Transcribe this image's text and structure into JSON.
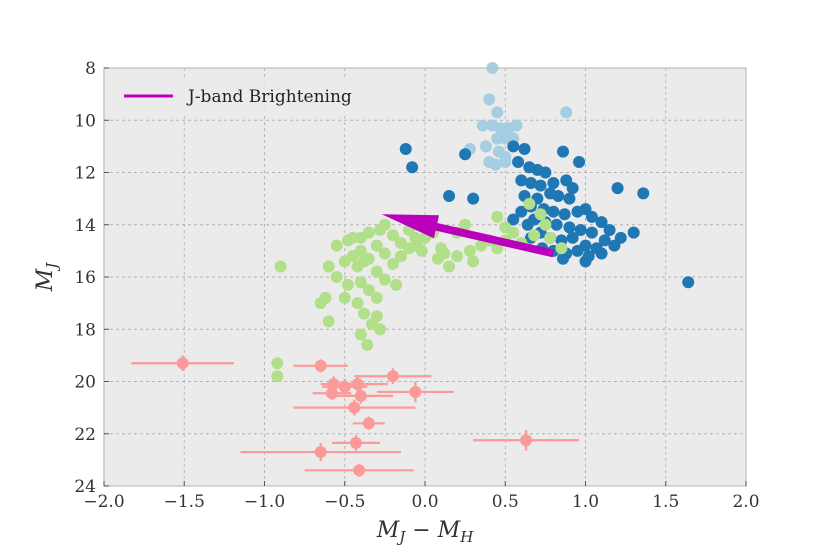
{
  "chart_data": {
    "type": "scatter",
    "title": "",
    "xlabel": "M_J − M_H",
    "ylabel": "M_J",
    "xlabel_main": "M",
    "xlabel_sub1": "J",
    "xlabel_minus": " − M",
    "xlabel_sub2": "H",
    "ylabel_main": "M",
    "ylabel_sub": "J",
    "xlim": [
      -2.0,
      2.0
    ],
    "ylim": [
      24,
      8
    ],
    "y_inverted": true,
    "grid": true,
    "background": "#ebebeb",
    "x_ticks": [
      -2.0,
      -1.5,
      -1.0,
      -0.5,
      0.0,
      0.5,
      1.0,
      1.5,
      2.0
    ],
    "x_tick_labels": [
      "−2.0",
      "−1.5",
      "−1.0",
      "−0.5",
      "0.0",
      "0.5",
      "1.0",
      "1.5",
      "2.0"
    ],
    "y_ticks": [
      8,
      10,
      12,
      14,
      16,
      18,
      20,
      22,
      24
    ],
    "y_tick_labels": [
      "8",
      "10",
      "12",
      "14",
      "16",
      "18",
      "20",
      "22",
      "24"
    ],
    "legend": {
      "position": "top-left",
      "entries": [
        {
          "label": "J-band Brightening",
          "color": "#bb00bb"
        }
      ]
    },
    "series": [
      {
        "color": "#a6cee3",
        "points": [
          [
            0.42,
            8.0
          ],
          [
            0.4,
            9.2
          ],
          [
            0.45,
            9.7
          ],
          [
            0.88,
            9.7
          ],
          [
            0.36,
            10.2
          ],
          [
            0.42,
            10.2
          ],
          [
            0.47,
            10.3
          ],
          [
            0.52,
            10.3
          ],
          [
            0.57,
            10.2
          ],
          [
            0.45,
            10.7
          ],
          [
            0.5,
            10.7
          ],
          [
            0.55,
            10.7
          ],
          [
            0.38,
            11.0
          ],
          [
            0.46,
            11.2
          ],
          [
            0.5,
            11.4
          ],
          [
            0.28,
            11.1
          ],
          [
            0.4,
            11.6
          ],
          [
            0.44,
            11.7
          ],
          [
            0.5,
            11.6
          ]
        ]
      },
      {
        "color": "#1f78b4",
        "points": [
          [
            -0.12,
            11.1
          ],
          [
            -0.08,
            11.8
          ],
          [
            0.25,
            11.3
          ],
          [
            0.55,
            11.0
          ],
          [
            0.62,
            11.1
          ],
          [
            0.86,
            11.2
          ],
          [
            0.96,
            11.6
          ],
          [
            0.58,
            11.6
          ],
          [
            0.65,
            11.8
          ],
          [
            0.7,
            11.9
          ],
          [
            0.75,
            12.0
          ],
          [
            0.6,
            12.3
          ],
          [
            0.66,
            12.4
          ],
          [
            0.72,
            12.5
          ],
          [
            0.8,
            12.4
          ],
          [
            0.88,
            12.3
          ],
          [
            0.92,
            12.6
          ],
          [
            0.78,
            12.8
          ],
          [
            0.83,
            12.9
          ],
          [
            0.9,
            13.0
          ],
          [
            0.7,
            13.0
          ],
          [
            0.62,
            12.9
          ],
          [
            0.66,
            13.3
          ],
          [
            0.74,
            13.4
          ],
          [
            0.8,
            13.5
          ],
          [
            0.87,
            13.6
          ],
          [
            0.95,
            13.5
          ],
          [
            1.0,
            13.4
          ],
          [
            0.6,
            13.5
          ],
          [
            0.68,
            13.8
          ],
          [
            0.75,
            13.9
          ],
          [
            0.82,
            14.0
          ],
          [
            0.9,
            14.1
          ],
          [
            0.97,
            14.2
          ],
          [
            1.04,
            14.3
          ],
          [
            0.72,
            14.3
          ],
          [
            0.78,
            14.5
          ],
          [
            0.85,
            14.6
          ],
          [
            0.92,
            14.5
          ],
          [
            1.0,
            14.8
          ],
          [
            1.07,
            14.9
          ],
          [
            1.12,
            14.6
          ],
          [
            0.66,
            14.5
          ],
          [
            0.73,
            14.9
          ],
          [
            0.8,
            15.0
          ],
          [
            0.88,
            15.1
          ],
          [
            0.95,
            15.0
          ],
          [
            1.02,
            15.2
          ],
          [
            1.1,
            15.1
          ],
          [
            0.86,
            15.3
          ],
          [
            1.0,
            15.4
          ],
          [
            1.2,
            12.6
          ],
          [
            1.22,
            14.5
          ],
          [
            1.3,
            14.3
          ],
          [
            1.36,
            12.8
          ],
          [
            1.18,
            14.8
          ],
          [
            0.15,
            12.9
          ],
          [
            0.3,
            13.0
          ],
          [
            0.55,
            13.8
          ],
          [
            0.64,
            14.0
          ],
          [
            1.04,
            13.7
          ],
          [
            1.1,
            13.9
          ],
          [
            1.15,
            14.2
          ],
          [
            1.64,
            16.2
          ]
        ]
      },
      {
        "color": "#b2df8a",
        "points": [
          [
            -0.55,
            14.8
          ],
          [
            -0.48,
            14.6
          ],
          [
            -0.4,
            14.5
          ],
          [
            -0.35,
            14.3
          ],
          [
            -0.28,
            14.2
          ],
          [
            -0.25,
            14.0
          ],
          [
            -0.2,
            14.4
          ],
          [
            -0.15,
            14.7
          ],
          [
            -0.1,
            14.9
          ],
          [
            -0.05,
            14.8
          ],
          [
            -0.4,
            15.0
          ],
          [
            -0.45,
            15.2
          ],
          [
            -0.5,
            15.4
          ],
          [
            -0.42,
            15.6
          ],
          [
            -0.35,
            15.3
          ],
          [
            -0.3,
            15.8
          ],
          [
            -0.25,
            15.1
          ],
          [
            -0.2,
            15.5
          ],
          [
            -0.15,
            15.2
          ],
          [
            -0.6,
            15.6
          ],
          [
            -0.55,
            16.0
          ],
          [
            -0.48,
            16.3
          ],
          [
            -0.4,
            16.2
          ],
          [
            -0.35,
            16.5
          ],
          [
            -0.3,
            16.8
          ],
          [
            -0.25,
            16.1
          ],
          [
            -0.5,
            16.8
          ],
          [
            -0.42,
            17.0
          ],
          [
            -0.38,
            17.4
          ],
          [
            -0.33,
            17.8
          ],
          [
            -0.28,
            18.0
          ],
          [
            -0.4,
            18.2
          ],
          [
            -0.36,
            18.6
          ],
          [
            -0.65,
            17.0
          ],
          [
            -0.6,
            17.7
          ],
          [
            -0.62,
            16.8
          ],
          [
            -0.9,
            15.6
          ],
          [
            -0.92,
            19.3
          ],
          [
            -0.92,
            19.8
          ],
          [
            -0.06,
            14.5
          ],
          [
            -0.1,
            14.2
          ],
          [
            0.1,
            14.9
          ],
          [
            0.12,
            15.1
          ],
          [
            0.2,
            15.2
          ],
          [
            0.28,
            15.0
          ],
          [
            0.35,
            14.8
          ],
          [
            0.4,
            14.6
          ],
          [
            0.45,
            14.9
          ],
          [
            0.5,
            14.6
          ],
          [
            0.55,
            14.3
          ],
          [
            0.5,
            14.1
          ],
          [
            0.45,
            13.7
          ],
          [
            0.2,
            14.3
          ],
          [
            0.25,
            14.0
          ],
          [
            0.3,
            15.4
          ],
          [
            0.15,
            15.6
          ],
          [
            0.08,
            15.3
          ],
          [
            0.0,
            14.5
          ],
          [
            -0.02,
            15.0
          ],
          [
            0.65,
            13.2
          ],
          [
            0.72,
            13.6
          ],
          [
            0.75,
            14.0
          ],
          [
            0.68,
            14.4
          ],
          [
            0.6,
            14.7
          ],
          [
            0.78,
            14.5
          ],
          [
            0.85,
            14.9
          ],
          [
            -0.18,
            16.3
          ],
          [
            -0.3,
            17.5
          ],
          [
            -0.38,
            15.4
          ],
          [
            -0.45,
            14.5
          ],
          [
            -0.3,
            14.8
          ],
          [
            0.05,
            14.3
          ]
        ]
      },
      {
        "color": "#fb9a99",
        "points": [
          [
            -1.51,
            19.3
          ],
          [
            -0.65,
            19.4
          ],
          [
            -0.2,
            19.8
          ],
          [
            -0.57,
            20.1
          ],
          [
            -0.5,
            20.2
          ],
          [
            -0.42,
            20.1
          ],
          [
            -0.58,
            20.45
          ],
          [
            -0.4,
            20.55
          ],
          [
            -0.06,
            20.4
          ],
          [
            -0.44,
            21.0
          ],
          [
            -0.35,
            21.6
          ],
          [
            -0.43,
            22.35
          ],
          [
            0.63,
            22.25
          ],
          [
            -0.65,
            22.7
          ],
          [
            -0.41,
            23.4
          ]
        ],
        "xerr": [
          0.32,
          0.17,
          0.24,
          0.08,
          0.14,
          0.19,
          0.12,
          0.2,
          0.24,
          0.38,
          0.1,
          0.15,
          0.33,
          0.5,
          0.34
        ],
        "yerr": [
          0.3,
          0.25,
          0.3,
          0.3,
          0.3,
          0.3,
          0.25,
          0.3,
          0.4,
          0.3,
          0.25,
          0.3,
          0.4,
          0.35,
          0.25
        ]
      }
    ],
    "arrow": {
      "color": "#bb00bb",
      "from": [
        0.8,
        15.1
      ],
      "to": [
        -0.27,
        13.6
      ],
      "tail_width": 0.3,
      "head_width": 0.9,
      "head_length_x": 0.35
    }
  }
}
